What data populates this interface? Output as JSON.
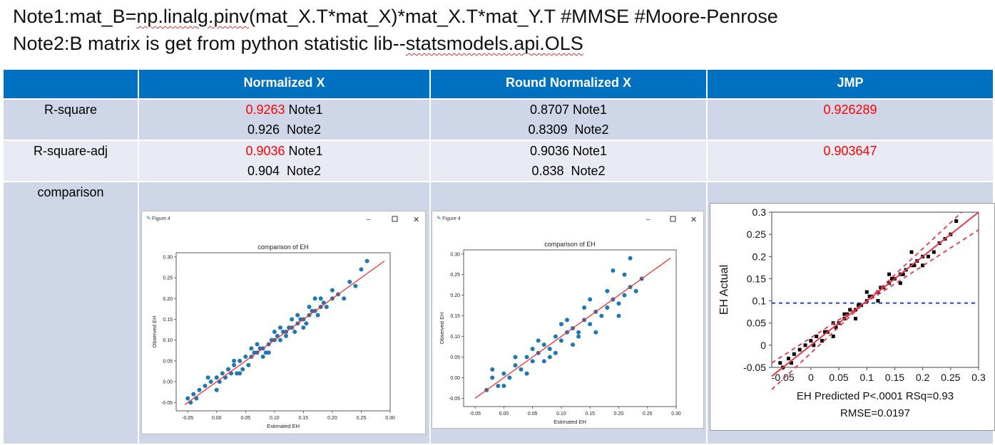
{
  "notes": {
    "note1": {
      "prefix": "Note1:mat_B=",
      "code": "np.linalg.pinv",
      "middle": "(mat_X.T*mat_X)*mat_X.T*mat_Y.T #MMSE  #Moore-Penrose"
    },
    "note2": {
      "prefix": "Note2:B matrix is get from python statistic lib--",
      "lib": "statsmodels.api.OLS"
    }
  },
  "table": {
    "headers": [
      "",
      "Normalized X",
      "Round Normalized X",
      "JMP"
    ],
    "rows": [
      {
        "label": "R-square",
        "col1": [
          {
            "value": "0.9263",
            "red": true,
            "suffix": " Note1"
          },
          {
            "value": "0.926",
            "red": false,
            "suffix": "  Note2"
          }
        ],
        "col2": [
          {
            "value": "0.8707",
            "red": false,
            "suffix": " Note1"
          },
          {
            "value": "0.8309",
            "red": false,
            "suffix": "  Note2"
          }
        ],
        "col3": "0.926289"
      },
      {
        "label": "R-square-adj",
        "col1": [
          {
            "value": "0.9036",
            "red": true,
            "suffix": " Note1"
          },
          {
            "value": "0.904",
            "red": false,
            "suffix": "  Note2"
          }
        ],
        "col2": [
          {
            "value": "0.9036",
            "red": false,
            "suffix": " Note1"
          },
          {
            "value": "0.838",
            "red": false,
            "suffix": "  Note2"
          }
        ],
        "col3": "0.903647"
      },
      {
        "label": "comparison"
      }
    ]
  },
  "figures": {
    "window_title": "Figure 4",
    "fig1": {
      "title": "comparison of EH",
      "xlabel": "Estimated EH",
      "ylabel": "Observed EH"
    },
    "fig2": {
      "title": "comparison of EH",
      "xlabel": "Estimated EH",
      "ylabel": "Observed EH"
    },
    "jmp": {
      "ylabel": "EH Actual",
      "xlabel_line1": "EH Predicted P<.0001 RSq=0.93",
      "xlabel_line2": "RMSE=0.0197"
    }
  },
  "chart_data": [
    {
      "type": "scatter",
      "title": "comparison of EH",
      "xlabel": "Estimated EH",
      "ylabel": "Observed EH",
      "xlim": [
        -0.07,
        0.3
      ],
      "ylim": [
        -0.07,
        0.31
      ],
      "xticks": [
        "-0.05",
        "0.00",
        "0.05",
        "0.10",
        "0.15",
        "0.20",
        "0.25",
        "0.30"
      ],
      "yticks": [
        "-0.05",
        "0.00",
        "0.05",
        "0.10",
        "0.15",
        "0.20",
        "0.25",
        "0.30"
      ],
      "fit_line": [
        [
          -0.055,
          -0.055
        ],
        [
          0.29,
          0.29
        ]
      ],
      "point_color": "#1f77b4",
      "line_color": "#ff2020",
      "x": [
        -0.05,
        -0.045,
        -0.04,
        -0.035,
        -0.03,
        -0.02,
        -0.015,
        -0.01,
        0.0,
        0.005,
        0.01,
        0.015,
        0.02,
        0.025,
        0.03,
        0.035,
        0.04,
        0.045,
        0.05,
        0.055,
        0.06,
        0.065,
        0.07,
        0.075,
        0.08,
        0.085,
        0.09,
        0.095,
        0.1,
        0.105,
        0.11,
        0.115,
        0.12,
        0.125,
        0.13,
        0.135,
        0.14,
        0.145,
        0.15,
        0.155,
        0.16,
        0.165,
        0.17,
        0.175,
        0.18,
        0.185,
        0.19,
        0.2,
        0.21,
        0.22,
        0.23,
        0.24,
        0.25,
        0.26,
        0.03,
        0.06,
        0.09,
        0.12,
        0.15,
        0.18,
        0.04,
        0.07,
        0.1,
        0.13,
        0.16,
        0.2,
        0.0,
        0.02,
        0.08,
        0.11,
        0.14,
        0.17
      ],
      "y": [
        -0.04,
        -0.05,
        -0.03,
        -0.04,
        -0.02,
        -0.01,
        0.01,
        0.0,
        0.01,
        0.0,
        0.02,
        0.01,
        0.03,
        0.02,
        0.04,
        0.02,
        0.05,
        0.03,
        0.06,
        0.04,
        0.06,
        0.07,
        0.07,
        0.08,
        0.08,
        0.07,
        0.09,
        0.1,
        0.1,
        0.11,
        0.1,
        0.12,
        0.12,
        0.13,
        0.13,
        0.12,
        0.14,
        0.15,
        0.15,
        0.14,
        0.16,
        0.17,
        0.17,
        0.16,
        0.18,
        0.19,
        0.18,
        0.2,
        0.21,
        0.2,
        0.24,
        0.23,
        0.27,
        0.29,
        0.05,
        0.08,
        0.07,
        0.11,
        0.13,
        0.2,
        0.02,
        0.09,
        0.12,
        0.15,
        0.18,
        0.22,
        -0.02,
        0.03,
        0.06,
        0.13,
        0.16,
        0.2
      ]
    },
    {
      "type": "scatter",
      "title": "comparison of EH",
      "xlabel": "Estimated EH",
      "ylabel": "Observed EH",
      "xlim": [
        -0.07,
        0.3
      ],
      "ylim": [
        -0.07,
        0.31
      ],
      "xticks": [
        "-0.05",
        "0.00",
        "0.05",
        "0.10",
        "0.15",
        "0.20",
        "0.25",
        "0.30"
      ],
      "yticks": [
        "-0.05",
        "0.00",
        "0.05",
        "0.10",
        "0.15",
        "0.20",
        "0.25",
        "0.30"
      ],
      "fit_line": [
        [
          -0.05,
          -0.05
        ],
        [
          0.29,
          0.29
        ]
      ],
      "point_color": "#1f77b4",
      "line_color": "#ff2020",
      "x": [
        -0.03,
        -0.02,
        -0.01,
        0.0,
        0.01,
        0.02,
        0.03,
        0.04,
        0.05,
        0.06,
        0.07,
        0.08,
        0.09,
        0.1,
        0.11,
        0.12,
        0.13,
        0.14,
        0.15,
        0.16,
        0.17,
        0.18,
        0.19,
        0.2,
        0.21,
        0.22,
        0.23,
        0.24,
        -0.02,
        0.0,
        0.02,
        0.04,
        0.06,
        0.08,
        0.1,
        0.12,
        0.14,
        0.16,
        0.18,
        0.2,
        0.22,
        0.19,
        0.21,
        0.15,
        0.05,
        0.07,
        0.09,
        0.11,
        0.13
      ],
      "y": [
        -0.03,
        0.0,
        -0.02,
        0.01,
        0.0,
        0.03,
        0.02,
        0.05,
        0.04,
        0.06,
        0.08,
        0.07,
        0.1,
        0.09,
        0.11,
        0.12,
        0.11,
        0.14,
        0.13,
        0.16,
        0.15,
        0.17,
        0.19,
        0.18,
        0.2,
        0.22,
        0.21,
        0.24,
        0.02,
        -0.02,
        0.05,
        0.01,
        0.09,
        0.05,
        0.13,
        0.08,
        0.17,
        0.11,
        0.21,
        0.15,
        0.29,
        0.26,
        0.25,
        0.19,
        0.07,
        0.04,
        0.06,
        0.14,
        0.1
      ]
    },
    {
      "type": "scatter",
      "title": "",
      "xlabel": "EH Predicted P<.0001 RSq=0.93",
      "ylabel": "EH Actual",
      "xlim": [
        -0.07,
        0.3
      ],
      "ylim": [
        -0.05,
        0.3
      ],
      "xticks": [
        "-0.05",
        "0",
        "0.05",
        "0.1",
        "0.15",
        "0.2",
        "0.25",
        "0.3"
      ],
      "yticks": [
        "-0.05",
        "0",
        "0.05",
        "0.1",
        "0.15",
        "0.2",
        "0.25",
        "0.3"
      ],
      "mean_line_y": 0.095,
      "fit_line": [
        [
          -0.07,
          -0.07
        ],
        [
          0.3,
          0.3
        ]
      ],
      "point_color": "#000000",
      "line_color": "#e8364a",
      "mean_line_color": "#2050e0",
      "x": [
        -0.055,
        -0.05,
        -0.04,
        -0.035,
        -0.03,
        -0.02,
        -0.01,
        0.0,
        0.005,
        0.01,
        0.02,
        0.025,
        0.03,
        0.04,
        0.045,
        0.05,
        0.06,
        0.065,
        0.07,
        0.08,
        0.085,
        0.09,
        0.1,
        0.105,
        0.11,
        0.12,
        0.125,
        0.13,
        0.14,
        0.145,
        0.15,
        0.16,
        0.165,
        0.17,
        0.18,
        0.185,
        0.19,
        0.2,
        0.21,
        0.22,
        0.23,
        0.24,
        0.25,
        0.26,
        0.04,
        0.06,
        0.08,
        0.1,
        0.12,
        0.14,
        0.16,
        0.18,
        0.2
      ],
      "y": [
        -0.04,
        -0.05,
        -0.03,
        -0.04,
        -0.02,
        -0.01,
        0.0,
        0.01,
        0.0,
        0.02,
        0.01,
        0.03,
        0.03,
        0.05,
        0.04,
        0.05,
        0.06,
        0.07,
        0.08,
        0.08,
        0.09,
        0.09,
        0.1,
        0.11,
        0.11,
        0.12,
        0.13,
        0.13,
        0.14,
        0.15,
        0.15,
        0.16,
        0.16,
        0.17,
        0.18,
        0.18,
        0.19,
        0.2,
        0.2,
        0.21,
        0.23,
        0.24,
        0.25,
        0.28,
        0.02,
        0.07,
        0.06,
        0.12,
        0.1,
        0.16,
        0.14,
        0.21,
        0.18
      ]
    }
  ]
}
